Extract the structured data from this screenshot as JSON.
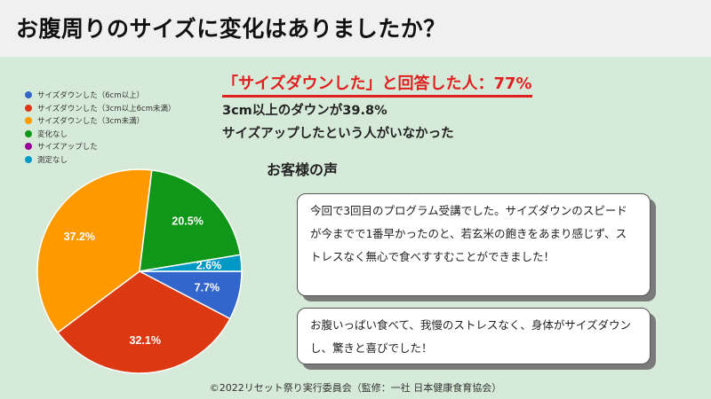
{
  "title": "お腹周りのサイズに変化はありましたか？",
  "headline": "「サイズダウンした」と回答した人：77%",
  "summary": {
    "line1": "3cm以上のダウンが39.8%",
    "line2": "サイズアップしたという人がいなかった"
  },
  "voices": {
    "heading": "お客様の声",
    "comment1": "今回で3回目のプログラム受講でした。サイズダウンのスピードが今までで1番早かったのと、若玄米の飽きをあまり感じず、ストレスなく無心で食べすすむことができました！",
    "comment2": "お腹いっぱい食べて、我慢のストレスなく、身体がサイズダウンし、驚きと喜びでした！"
  },
  "footer": "©2022リセット祭り実行委員会（監修：一社 日本健康食育協会）",
  "chart_data": {
    "type": "pie",
    "legend_position": "top-left",
    "slices": [
      {
        "label": "サイズダウンした（6cm以上）",
        "value": 7.7,
        "display": "7.7%",
        "color": "#3366cc"
      },
      {
        "label": "サイズダウンした（3cm以上6cm未満）",
        "value": 32.1,
        "display": "32.1%",
        "color": "#dc3912"
      },
      {
        "label": "サイズダウンした（3cm未満）",
        "value": 37.2,
        "display": "37.2%",
        "color": "#ff9900"
      },
      {
        "label": "変化なし",
        "value": 20.5,
        "display": "20.5%",
        "color": "#109618"
      },
      {
        "label": "サイズアップした",
        "value": 0,
        "display": "",
        "color": "#990099"
      },
      {
        "label": "測定なし",
        "value": 2.6,
        "display": "2.6%",
        "color": "#0099c6"
      }
    ]
  }
}
